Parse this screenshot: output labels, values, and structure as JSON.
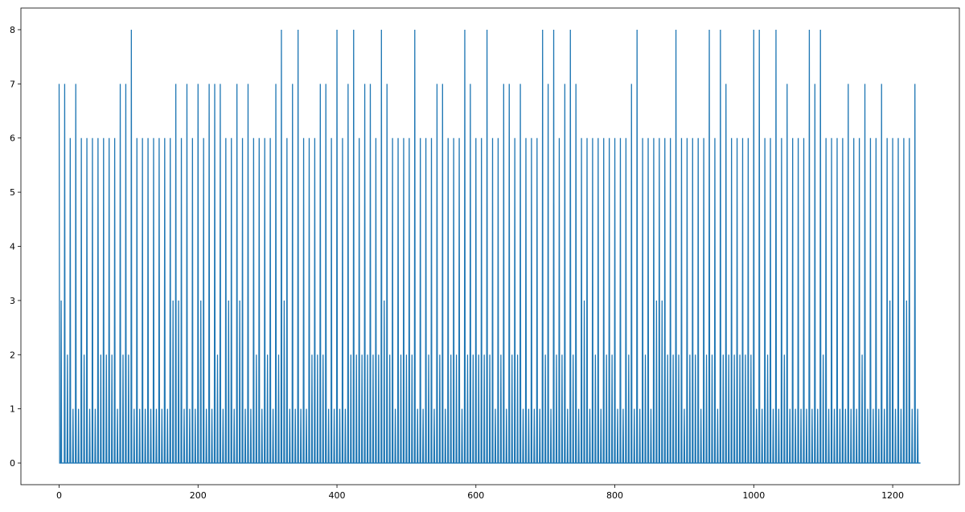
{
  "chart_data": {
    "type": "line",
    "title": "",
    "xlabel": "",
    "ylabel": "",
    "xlim": [
      -55,
      1296
    ],
    "ylim": [
      -0.4,
      8.4
    ],
    "x_ticks": [
      0,
      200,
      400,
      600,
      800,
      1000,
      1200
    ],
    "y_ticks": [
      0,
      1,
      2,
      3,
      4,
      5,
      6,
      7,
      8
    ],
    "x_tick_labels": [
      "0",
      "200",
      "400",
      "600",
      "800",
      "1000",
      "1200"
    ],
    "y_tick_labels": [
      "0",
      "1",
      "2",
      "3",
      "4",
      "5",
      "6",
      "7",
      "8"
    ],
    "grid": false,
    "legend": "none",
    "line_color": "#1f77b4",
    "series": [
      {
        "spikes": [
          [
            0,
            7
          ],
          [
            3,
            3
          ],
          [
            8,
            7
          ],
          [
            12,
            2
          ],
          [
            16,
            6
          ],
          [
            20,
            1
          ],
          [
            24,
            7
          ],
          [
            28,
            1
          ],
          [
            32,
            6
          ],
          [
            36,
            2
          ],
          [
            40,
            6
          ],
          [
            44,
            1
          ],
          [
            48,
            6
          ],
          [
            52,
            1
          ],
          [
            56,
            6
          ],
          [
            60,
            2
          ],
          [
            64,
            6
          ],
          [
            68,
            2
          ],
          [
            72,
            6
          ],
          [
            76,
            2
          ],
          [
            80,
            6
          ],
          [
            84,
            1
          ],
          [
            88,
            7
          ],
          [
            92,
            2
          ],
          [
            96,
            7
          ],
          [
            100,
            2
          ],
          [
            104,
            8
          ],
          [
            108,
            1
          ],
          [
            112,
            6
          ],
          [
            116,
            1
          ],
          [
            120,
            6
          ],
          [
            124,
            1
          ],
          [
            128,
            6
          ],
          [
            132,
            1
          ],
          [
            136,
            6
          ],
          [
            140,
            1
          ],
          [
            144,
            6
          ],
          [
            148,
            1
          ],
          [
            152,
            6
          ],
          [
            156,
            1
          ],
          [
            160,
            6
          ],
          [
            164,
            3
          ],
          [
            168,
            7
          ],
          [
            172,
            3
          ],
          [
            176,
            6
          ],
          [
            180,
            1
          ],
          [
            184,
            7
          ],
          [
            188,
            1
          ],
          [
            192,
            6
          ],
          [
            196,
            1
          ],
          [
            200,
            7
          ],
          [
            204,
            3
          ],
          [
            208,
            6
          ],
          [
            212,
            1
          ],
          [
            216,
            7
          ],
          [
            220,
            1
          ],
          [
            224,
            7
          ],
          [
            228,
            2
          ],
          [
            232,
            7
          ],
          [
            236,
            1
          ],
          [
            240,
            6
          ],
          [
            244,
            3
          ],
          [
            248,
            6
          ],
          [
            252,
            1
          ],
          [
            256,
            7
          ],
          [
            260,
            3
          ],
          [
            264,
            6
          ],
          [
            268,
            1
          ],
          [
            272,
            7
          ],
          [
            276,
            1
          ],
          [
            280,
            6
          ],
          [
            284,
            2
          ],
          [
            288,
            6
          ],
          [
            292,
            1
          ],
          [
            296,
            6
          ],
          [
            300,
            2
          ],
          [
            304,
            6
          ],
          [
            308,
            1
          ],
          [
            312,
            7
          ],
          [
            316,
            2
          ],
          [
            320,
            8
          ],
          [
            324,
            3
          ],
          [
            328,
            6
          ],
          [
            332,
            1
          ],
          [
            336,
            7
          ],
          [
            340,
            1
          ],
          [
            344,
            8
          ],
          [
            348,
            1
          ],
          [
            352,
            6
          ],
          [
            356,
            1
          ],
          [
            360,
            6
          ],
          [
            364,
            2
          ],
          [
            368,
            6
          ],
          [
            372,
            2
          ],
          [
            376,
            7
          ],
          [
            380,
            2
          ],
          [
            384,
            7
          ],
          [
            388,
            1
          ],
          [
            392,
            6
          ],
          [
            396,
            1
          ],
          [
            400,
            8
          ],
          [
            404,
            1
          ],
          [
            408,
            6
          ],
          [
            412,
            1
          ],
          [
            416,
            7
          ],
          [
            420,
            2
          ],
          [
            424,
            8
          ],
          [
            428,
            2
          ],
          [
            432,
            6
          ],
          [
            436,
            2
          ],
          [
            440,
            7
          ],
          [
            444,
            2
          ],
          [
            448,
            7
          ],
          [
            452,
            2
          ],
          [
            456,
            6
          ],
          [
            460,
            2
          ],
          [
            464,
            8
          ],
          [
            468,
            3
          ],
          [
            472,
            7
          ],
          [
            476,
            2
          ],
          [
            480,
            6
          ],
          [
            484,
            1
          ],
          [
            488,
            6
          ],
          [
            492,
            2
          ],
          [
            496,
            6
          ],
          [
            500,
            2
          ],
          [
            504,
            6
          ],
          [
            508,
            2
          ],
          [
            512,
            8
          ],
          [
            516,
            1
          ],
          [
            520,
            6
          ],
          [
            524,
            1
          ],
          [
            528,
            6
          ],
          [
            532,
            2
          ],
          [
            536,
            6
          ],
          [
            540,
            1
          ],
          [
            544,
            7
          ],
          [
            548,
            2
          ],
          [
            552,
            7
          ],
          [
            556,
            1
          ],
          [
            560,
            6
          ],
          [
            564,
            2
          ],
          [
            568,
            6
          ],
          [
            572,
            2
          ],
          [
            576,
            6
          ],
          [
            580,
            1
          ],
          [
            584,
            8
          ],
          [
            588,
            2
          ],
          [
            592,
            7
          ],
          [
            596,
            2
          ],
          [
            600,
            6
          ],
          [
            604,
            2
          ],
          [
            608,
            6
          ],
          [
            612,
            2
          ],
          [
            616,
            8
          ],
          [
            620,
            2
          ],
          [
            624,
            6
          ],
          [
            628,
            1
          ],
          [
            632,
            6
          ],
          [
            636,
            2
          ],
          [
            640,
            7
          ],
          [
            644,
            1
          ],
          [
            648,
            7
          ],
          [
            652,
            2
          ],
          [
            656,
            6
          ],
          [
            660,
            2
          ],
          [
            664,
            7
          ],
          [
            668,
            1
          ],
          [
            672,
            6
          ],
          [
            676,
            1
          ],
          [
            680,
            6
          ],
          [
            684,
            1
          ],
          [
            688,
            6
          ],
          [
            692,
            1
          ],
          [
            696,
            8
          ],
          [
            700,
            2
          ],
          [
            704,
            7
          ],
          [
            708,
            1
          ],
          [
            712,
            8
          ],
          [
            716,
            2
          ],
          [
            720,
            6
          ],
          [
            724,
            2
          ],
          [
            728,
            7
          ],
          [
            732,
            1
          ],
          [
            736,
            8
          ],
          [
            740,
            2
          ],
          [
            744,
            7
          ],
          [
            748,
            1
          ],
          [
            752,
            6
          ],
          [
            756,
            3
          ],
          [
            760,
            6
          ],
          [
            764,
            1
          ],
          [
            768,
            6
          ],
          [
            772,
            2
          ],
          [
            776,
            6
          ],
          [
            780,
            1
          ],
          [
            784,
            6
          ],
          [
            788,
            2
          ],
          [
            792,
            6
          ],
          [
            796,
            2
          ],
          [
            800,
            6
          ],
          [
            804,
            1
          ],
          [
            808,
            6
          ],
          [
            812,
            1
          ],
          [
            816,
            6
          ],
          [
            820,
            2
          ],
          [
            824,
            7
          ],
          [
            828,
            1
          ],
          [
            832,
            8
          ],
          [
            836,
            1
          ],
          [
            840,
            6
          ],
          [
            844,
            2
          ],
          [
            848,
            6
          ],
          [
            852,
            1
          ],
          [
            856,
            6
          ],
          [
            860,
            3
          ],
          [
            864,
            6
          ],
          [
            868,
            3
          ],
          [
            872,
            6
          ],
          [
            876,
            2
          ],
          [
            880,
            6
          ],
          [
            884,
            2
          ],
          [
            888,
            8
          ],
          [
            892,
            2
          ],
          [
            896,
            6
          ],
          [
            900,
            1
          ],
          [
            904,
            6
          ],
          [
            908,
            2
          ],
          [
            912,
            6
          ],
          [
            916,
            2
          ],
          [
            920,
            6
          ],
          [
            924,
            1
          ],
          [
            928,
            6
          ],
          [
            932,
            2
          ],
          [
            936,
            8
          ],
          [
            940,
            2
          ],
          [
            944,
            6
          ],
          [
            948,
            1
          ],
          [
            952,
            8
          ],
          [
            956,
            2
          ],
          [
            960,
            7
          ],
          [
            964,
            2
          ],
          [
            968,
            6
          ],
          [
            972,
            2
          ],
          [
            976,
            6
          ],
          [
            980,
            2
          ],
          [
            984,
            6
          ],
          [
            988,
            2
          ],
          [
            992,
            6
          ],
          [
            996,
            2
          ],
          [
            1000,
            8
          ],
          [
            1004,
            1
          ],
          [
            1008,
            8
          ],
          [
            1012,
            1
          ],
          [
            1016,
            6
          ],
          [
            1020,
            2
          ],
          [
            1024,
            6
          ],
          [
            1028,
            1
          ],
          [
            1032,
            8
          ],
          [
            1036,
            1
          ],
          [
            1040,
            6
          ],
          [
            1044,
            2
          ],
          [
            1048,
            7
          ],
          [
            1052,
            1
          ],
          [
            1056,
            6
          ],
          [
            1060,
            1
          ],
          [
            1064,
            6
          ],
          [
            1068,
            1
          ],
          [
            1072,
            6
          ],
          [
            1076,
            1
          ],
          [
            1080,
            8
          ],
          [
            1084,
            1
          ],
          [
            1088,
            7
          ],
          [
            1092,
            1
          ],
          [
            1096,
            8
          ],
          [
            1100,
            2
          ],
          [
            1104,
            6
          ],
          [
            1108,
            1
          ],
          [
            1112,
            6
          ],
          [
            1116,
            1
          ],
          [
            1120,
            6
          ],
          [
            1124,
            1
          ],
          [
            1128,
            6
          ],
          [
            1132,
            1
          ],
          [
            1136,
            7
          ],
          [
            1140,
            1
          ],
          [
            1144,
            6
          ],
          [
            1148,
            1
          ],
          [
            1152,
            6
          ],
          [
            1156,
            2
          ],
          [
            1160,
            7
          ],
          [
            1164,
            1
          ],
          [
            1168,
            6
          ],
          [
            1172,
            1
          ],
          [
            1176,
            6
          ],
          [
            1180,
            1
          ],
          [
            1184,
            7
          ],
          [
            1188,
            1
          ],
          [
            1192,
            6
          ],
          [
            1196,
            3
          ],
          [
            1200,
            6
          ],
          [
            1204,
            1
          ],
          [
            1208,
            6
          ],
          [
            1212,
            1
          ],
          [
            1216,
            6
          ],
          [
            1220,
            3
          ],
          [
            1224,
            6
          ],
          [
            1228,
            1
          ],
          [
            1232,
            7
          ],
          [
            1236,
            1
          ]
        ],
        "x_end": 1240
      }
    ]
  }
}
